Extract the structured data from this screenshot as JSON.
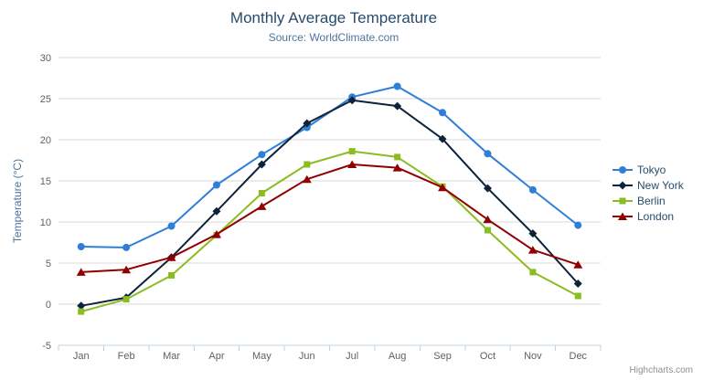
{
  "header": {
    "title": "Monthly Average Temperature",
    "subtitle": "Source: WorldClimate.com"
  },
  "chart_data": {
    "type": "line",
    "categories": [
      "Jan",
      "Feb",
      "Mar",
      "Apr",
      "May",
      "Jun",
      "Jul",
      "Aug",
      "Sep",
      "Oct",
      "Nov",
      "Dec"
    ],
    "series": [
      {
        "name": "Tokyo",
        "color": "#2f7ed8",
        "marker": "circle",
        "values": [
          7.0,
          6.9,
          9.5,
          14.5,
          18.2,
          21.5,
          25.2,
          26.5,
          23.3,
          18.3,
          13.9,
          9.6
        ]
      },
      {
        "name": "New York",
        "color": "#0d233a",
        "marker": "diamond",
        "values": [
          -0.2,
          0.8,
          5.7,
          11.3,
          17.0,
          22.0,
          24.8,
          24.1,
          20.1,
          14.1,
          8.6,
          2.5
        ]
      },
      {
        "name": "Berlin",
        "color": "#8bbc21",
        "marker": "square",
        "values": [
          -0.9,
          0.6,
          3.5,
          8.4,
          13.5,
          17.0,
          18.6,
          17.9,
          14.3,
          9.0,
          3.9,
          1.0
        ]
      },
      {
        "name": "London",
        "color": "#910000",
        "marker": "triangle",
        "values": [
          3.9,
          4.2,
          5.7,
          8.5,
          11.9,
          15.2,
          17.0,
          16.6,
          14.2,
          10.3,
          6.6,
          4.8
        ]
      }
    ],
    "title": "Monthly Average Temperature",
    "subtitle": "Source: WorldClimate.com",
    "xlabel": "",
    "ylabel": "Temperature (°C)",
    "ylim": [
      -5,
      30
    ],
    "ytick_interval": 5,
    "grid": true,
    "legend_position": "right"
  },
  "credits": {
    "label": "Highcharts.com"
  },
  "colors": {
    "title": "#274b6d",
    "subtitle": "#4d759e",
    "axis_title": "#4d759e",
    "axis_labels": "#606060",
    "grid_line": "#d8d8d8",
    "axis_line": "#c0d0e0",
    "legend_text": "#274b6d",
    "credits": "#909090",
    "background": "#ffffff"
  }
}
